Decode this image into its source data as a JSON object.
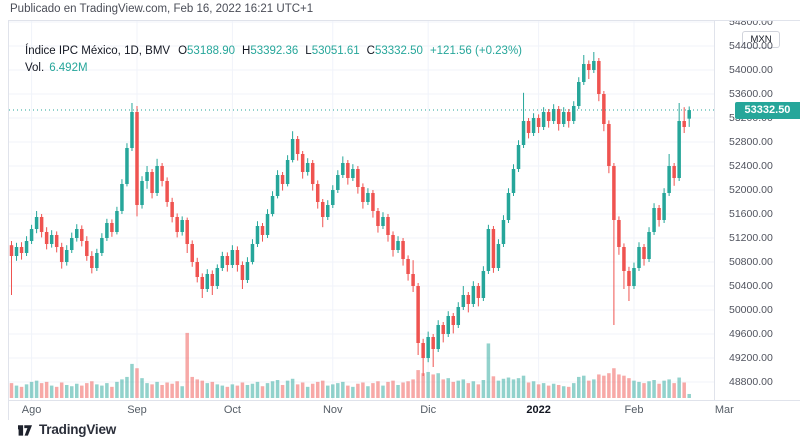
{
  "header": {
    "published_line": "Publicado en TradingView.com, Feb 16, 2022 16:21 UTC+1"
  },
  "legend": {
    "symbol": "Índice IPC México, 1D, BMV",
    "ohlc": [
      {
        "k": "O",
        "v": "53188.90"
      },
      {
        "k": "H",
        "v": "53392.36"
      },
      {
        "k": "L",
        "v": "53051.61"
      },
      {
        "k": "C",
        "v": "53332.50"
      }
    ],
    "change": "+121.56 (+0.23%)",
    "vol_label": "Vol.",
    "vol_value": "6.492M"
  },
  "price_axis": {
    "currency_badge": "MXN",
    "last_price_label": "53332.50"
  },
  "footer": {
    "brand": "TradingView"
  },
  "colors": {
    "up": "#26a69a",
    "down": "#ef5350",
    "vol_up": "rgba(38,166,154,0.5)",
    "vol_down": "rgba(239,83,80,0.5)",
    "grid": "#f0f3fa",
    "dotted_line": "#26a69a",
    "label_bg": "#26a69a"
  },
  "chart_data": {
    "type": "candlestick+volume",
    "title": "Índice IPC México, 1D, BMV",
    "timeframe": "1D",
    "exchange": "BMV",
    "currency": "MXN",
    "last": {
      "open": 53188.9,
      "high": 53392.36,
      "low": 53051.61,
      "close": 53332.5,
      "change": 121.56,
      "change_pct": 0.23,
      "volume": "6.492M"
    },
    "ylim": [
      48520,
      54815
    ],
    "y_ticks": [
      "54800.00",
      "54400.00",
      "54000.00",
      "53600.00",
      "53200.00",
      "52800.00",
      "52400.00",
      "52000.00",
      "51600.00",
      "51200.00",
      "50800.00",
      "50400.00",
      "50000.00",
      "49600.00",
      "49200.00",
      "48800.00"
    ],
    "months": [
      {
        "label": "Ago",
        "i": 4
      },
      {
        "label": "Sep",
        "i": 25
      },
      {
        "label": "Oct",
        "i": 44
      },
      {
        "label": "Nov",
        "i": 64
      },
      {
        "label": "Dic",
        "i": 83
      },
      {
        "label": "2022",
        "i": 105,
        "year": true
      },
      {
        "label": "Feb",
        "i": 124
      },
      {
        "label": "Mar",
        "i": 142
      }
    ],
    "volume_unit": "M",
    "candles": [
      [
        51080,
        51150,
        50250,
        50900,
        24
      ],
      [
        50900,
        51120,
        50820,
        51050,
        20
      ],
      [
        51050,
        51130,
        50840,
        50950,
        18
      ],
      [
        50950,
        51230,
        50900,
        51150,
        22
      ],
      [
        51150,
        51420,
        51100,
        51350,
        26
      ],
      [
        51350,
        51650,
        51280,
        51550,
        28
      ],
      [
        51550,
        51600,
        51210,
        51300,
        24
      ],
      [
        51300,
        51380,
        51010,
        51100,
        26
      ],
      [
        51100,
        51330,
        51040,
        51250,
        20
      ],
      [
        51250,
        51310,
        50960,
        51050,
        18
      ],
      [
        51050,
        51120,
        50690,
        50800,
        25
      ],
      [
        50800,
        51080,
        50740,
        51000,
        21
      ],
      [
        51000,
        51290,
        50950,
        51200,
        19
      ],
      [
        51200,
        51430,
        51140,
        51350,
        23
      ],
      [
        51350,
        51410,
        51060,
        51150,
        20
      ],
      [
        51150,
        51230,
        50820,
        50900,
        24
      ],
      [
        50900,
        50980,
        50610,
        50700,
        27
      ],
      [
        50700,
        51020,
        50650,
        50950,
        22
      ],
      [
        50950,
        51280,
        50900,
        51200,
        20
      ],
      [
        51200,
        51520,
        51150,
        51450,
        24
      ],
      [
        51450,
        51510,
        51220,
        51300,
        18
      ],
      [
        51300,
        51720,
        51260,
        51650,
        26
      ],
      [
        51650,
        52180,
        51600,
        52100,
        30
      ],
      [
        52100,
        52780,
        52060,
        52700,
        34
      ],
      [
        52700,
        53450,
        52650,
        53300,
        55
      ],
      [
        53300,
        53400,
        51560,
        51750,
        48
      ],
      [
        51750,
        52230,
        51690,
        52150,
        32
      ],
      [
        52150,
        52400,
        52020,
        52300,
        24
      ],
      [
        52300,
        52350,
        51860,
        51950,
        22
      ],
      [
        51950,
        52520,
        51900,
        52400,
        26
      ],
      [
        52400,
        52450,
        52060,
        52150,
        21
      ],
      [
        52150,
        52210,
        51720,
        51800,
        25
      ],
      [
        51800,
        51870,
        51460,
        51550,
        23
      ],
      [
        51550,
        51610,
        51210,
        51300,
        27
      ],
      [
        51300,
        51560,
        51240,
        51500,
        19
      ],
      [
        51500,
        51540,
        50950,
        51100,
        105
      ],
      [
        51100,
        51160,
        50720,
        50800,
        34
      ],
      [
        50800,
        50870,
        50460,
        50550,
        30
      ],
      [
        50550,
        50610,
        50200,
        50350,
        28
      ],
      [
        50350,
        50680,
        50300,
        50600,
        24
      ],
      [
        50600,
        50660,
        50250,
        50400,
        26
      ],
      [
        50400,
        50760,
        50350,
        50700,
        22
      ],
      [
        50700,
        50970,
        50650,
        50900,
        20
      ],
      [
        50900,
        50960,
        50640,
        50750,
        18
      ],
      [
        50750,
        51080,
        50700,
        51000,
        22
      ],
      [
        51000,
        51060,
        50640,
        50750,
        20
      ],
      [
        50750,
        50810,
        50350,
        50500,
        25
      ],
      [
        50500,
        50880,
        50450,
        50800,
        21
      ],
      [
        50800,
        51180,
        50760,
        51100,
        23
      ],
      [
        51100,
        51480,
        51050,
        51400,
        26
      ],
      [
        51400,
        51450,
        51140,
        51250,
        19
      ],
      [
        51250,
        51680,
        51200,
        51600,
        24
      ],
      [
        51600,
        51980,
        51560,
        51900,
        27
      ],
      [
        51900,
        52330,
        51860,
        52250,
        29
      ],
      [
        52250,
        52300,
        51990,
        52100,
        21
      ],
      [
        52100,
        52580,
        52060,
        52500,
        28
      ],
      [
        52500,
        52980,
        52460,
        52850,
        31
      ],
      [
        52850,
        52900,
        52490,
        52600,
        22
      ],
      [
        52600,
        52650,
        52190,
        52300,
        25
      ],
      [
        52300,
        52530,
        52240,
        52450,
        18
      ],
      [
        52450,
        52500,
        51990,
        52100,
        23
      ],
      [
        52100,
        52160,
        51690,
        51800,
        26
      ],
      [
        51800,
        51850,
        51380,
        51550,
        28
      ],
      [
        51550,
        51830,
        51500,
        51750,
        20
      ],
      [
        51750,
        52080,
        51700,
        52000,
        22
      ],
      [
        52000,
        52330,
        51950,
        52250,
        24
      ],
      [
        52250,
        52560,
        52200,
        52450,
        26
      ],
      [
        52450,
        52500,
        52090,
        52200,
        20
      ],
      [
        52200,
        52430,
        52150,
        52350,
        18
      ],
      [
        52350,
        52400,
        51940,
        52050,
        23
      ],
      [
        52050,
        52110,
        51690,
        51800,
        25
      ],
      [
        51800,
        52030,
        51750,
        51950,
        19
      ],
      [
        51950,
        52000,
        51540,
        51650,
        24
      ],
      [
        51650,
        51700,
        51290,
        51400,
        27
      ],
      [
        51400,
        51630,
        51350,
        51550,
        20
      ],
      [
        51550,
        51600,
        51140,
        51250,
        26
      ],
      [
        51250,
        51310,
        50890,
        51000,
        28
      ],
      [
        51000,
        51230,
        50950,
        51150,
        21
      ],
      [
        51150,
        51200,
        50740,
        50850,
        25
      ],
      [
        50850,
        50910,
        50490,
        50600,
        27
      ],
      [
        50600,
        50830,
        50300,
        50400,
        30
      ],
      [
        50400,
        50450,
        49250,
        49450,
        45
      ],
      [
        49450,
        49520,
        48900,
        49200,
        40
      ],
      [
        49200,
        49640,
        49130,
        49550,
        42
      ],
      [
        49550,
        49600,
        49050,
        49350,
        38
      ],
      [
        49350,
        49830,
        49300,
        49750,
        40
      ],
      [
        49750,
        49800,
        49460,
        49600,
        30
      ],
      [
        49600,
        49980,
        49550,
        49900,
        32
      ],
      [
        49900,
        49950,
        49610,
        49750,
        26
      ],
      [
        49750,
        50130,
        49700,
        50050,
        28
      ],
      [
        50050,
        50400,
        50000,
        50250,
        30
      ],
      [
        50250,
        50300,
        49960,
        50100,
        24
      ],
      [
        50100,
        50480,
        50050,
        50400,
        27
      ],
      [
        50400,
        50450,
        50060,
        50200,
        22
      ],
      [
        50200,
        50730,
        50150,
        50650,
        29
      ],
      [
        50650,
        51420,
        50600,
        51350,
        88
      ],
      [
        51350,
        51400,
        50620,
        50700,
        35
      ],
      [
        50700,
        51180,
        50650,
        51100,
        28
      ],
      [
        51100,
        51580,
        51050,
        51500,
        31
      ],
      [
        51500,
        52030,
        51450,
        51950,
        33
      ],
      [
        51950,
        52430,
        51900,
        52350,
        30
      ],
      [
        52350,
        52830,
        52300,
        52750,
        32
      ],
      [
        52750,
        53620,
        52700,
        53150,
        36
      ],
      [
        53150,
        53200,
        52860,
        52950,
        25
      ],
      [
        52950,
        53280,
        52900,
        53200,
        27
      ],
      [
        53200,
        53260,
        52950,
        53050,
        22
      ],
      [
        53050,
        53380,
        53000,
        53300,
        24
      ],
      [
        53300,
        53350,
        53040,
        53150,
        20
      ],
      [
        53150,
        53430,
        53100,
        53350,
        23
      ],
      [
        53350,
        53400,
        52990,
        53100,
        21
      ],
      [
        53100,
        53380,
        53050,
        53300,
        19
      ],
      [
        53300,
        53350,
        53040,
        53150,
        18
      ],
      [
        53150,
        53480,
        53100,
        53400,
        24
      ],
      [
        53400,
        53880,
        53350,
        53800,
        34
      ],
      [
        53800,
        54250,
        53750,
        54100,
        36
      ],
      [
        54100,
        54160,
        53850,
        54000,
        28
      ],
      [
        54000,
        54300,
        53950,
        54150,
        30
      ],
      [
        54150,
        54200,
        53480,
        53600,
        38
      ],
      [
        53600,
        53650,
        52980,
        53100,
        36
      ],
      [
        53100,
        53160,
        52280,
        52400,
        40
      ],
      [
        52400,
        52450,
        49750,
        51500,
        48
      ],
      [
        51500,
        51560,
        50920,
        51050,
        38
      ],
      [
        51050,
        51110,
        50350,
        50650,
        36
      ],
      [
        50650,
        50720,
        50150,
        50400,
        32
      ],
      [
        50400,
        50790,
        50350,
        50700,
        28
      ],
      [
        50700,
        51130,
        50650,
        51050,
        26
      ],
      [
        51050,
        51100,
        50740,
        50850,
        24
      ],
      [
        50850,
        51380,
        50800,
        51300,
        27
      ],
      [
        51300,
        51780,
        51250,
        51700,
        29
      ],
      [
        51700,
        51750,
        51390,
        51500,
        23
      ],
      [
        51500,
        52030,
        51450,
        51950,
        28
      ],
      [
        51950,
        52600,
        51900,
        52400,
        30
      ],
      [
        52400,
        52450,
        52070,
        52200,
        24
      ],
      [
        52200,
        53450,
        52150,
        53150,
        33
      ],
      [
        53150,
        53380,
        52950,
        53050,
        25
      ],
      [
        53188.9,
        53392.36,
        53051.61,
        53332.5,
        6.492
      ]
    ]
  }
}
